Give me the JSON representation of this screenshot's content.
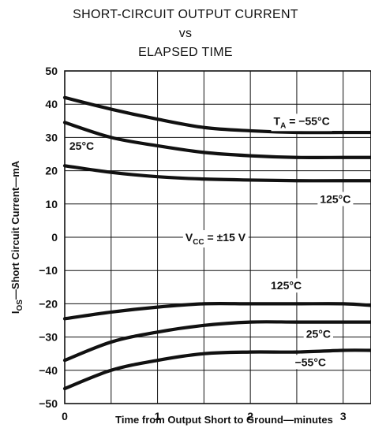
{
  "chart_data": {
    "type": "line",
    "title": [
      "SHORT-CIRCUIT OUTPUT CURRENT",
      "vs",
      "ELAPSED TIME"
    ],
    "xlabel": "Time from Output Short to Ground—minutes",
    "ylabel_parts": {
      "main": "I",
      "sub": "OS",
      "rest": "—Short Circuit Current—mA"
    },
    "xlim": [
      0,
      3.3
    ],
    "ylim": [
      -50,
      50
    ],
    "xticks": [
      "0",
      "1",
      "2",
      "3"
    ],
    "yticks": [
      "50",
      "40",
      "30",
      "20",
      "10",
      "0",
      "−10",
      "−20",
      "−30",
      "−40",
      "−50"
    ],
    "grid": true,
    "series": [
      {
        "name": "T_A = −55°C (source)",
        "x": [
          0,
          0.5,
          1,
          1.5,
          2,
          2.5,
          3,
          3.3
        ],
        "y": [
          42,
          38.5,
          35.5,
          33,
          32,
          31.5,
          31.5,
          31.5
        ]
      },
      {
        "name": "25°C (source)",
        "x": [
          0,
          0.5,
          1,
          1.5,
          2,
          2.5,
          3,
          3.3
        ],
        "y": [
          34.5,
          30,
          27.5,
          25.5,
          24.5,
          24,
          24,
          24
        ]
      },
      {
        "name": "125°C (source)",
        "x": [
          0,
          0.5,
          1,
          1.5,
          2,
          2.5,
          3,
          3.3
        ],
        "y": [
          21.5,
          19.5,
          18.2,
          17.5,
          17.2,
          17,
          17,
          17
        ]
      },
      {
        "name": "125°C (sink)",
        "x": [
          0,
          0.5,
          1,
          1.5,
          2,
          2.5,
          3,
          3.3
        ],
        "y": [
          -24.5,
          -22.5,
          -21,
          -20,
          -20,
          -20,
          -20,
          -20.5
        ]
      },
      {
        "name": "25°C (sink)",
        "x": [
          0,
          0.5,
          1,
          1.5,
          2,
          2.5,
          3,
          3.3
        ],
        "y": [
          -37,
          -31.5,
          -28.5,
          -26.5,
          -25.5,
          -25.5,
          -25.5,
          -25.5
        ]
      },
      {
        "name": "−55°C (sink)",
        "x": [
          0,
          0.5,
          1,
          1.5,
          2,
          2.5,
          3,
          3.3
        ],
        "y": [
          -45.5,
          -40,
          -37,
          -35,
          -34.5,
          -34.5,
          -34,
          -34
        ]
      }
    ],
    "annotations": [
      {
        "text": "T",
        "sub": "A",
        "rest": " =  −55°C",
        "x": 2.25,
        "y": 35
      },
      {
        "text": "25°C",
        "x": 0.05,
        "y": 27.5
      },
      {
        "text": "125°C",
        "x": 2.75,
        "y": 11.5
      },
      {
        "text": "V",
        "sub": "CC",
        "rest": " =  ±15 V",
        "x": 1.3,
        "y": 0
      },
      {
        "text": "125°C",
        "x": 2.22,
        "y": -14.5
      },
      {
        "text": "25°C",
        "x": 2.6,
        "y": -29
      },
      {
        "text": "−55°C",
        "x": 2.48,
        "y": -37.5
      }
    ]
  }
}
